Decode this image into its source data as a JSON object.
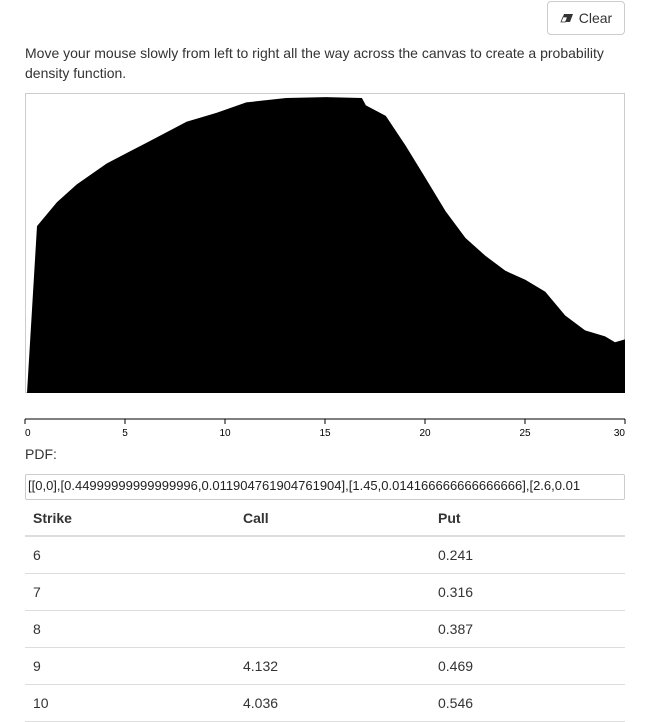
{
  "toolbar": {
    "clear_label": "Clear",
    "clear_icon": "eraser-icon"
  },
  "instructions": "Move your mouse slowly from left to right all the way across the canvas to create a probability density function.",
  "chart_data": {
    "type": "area",
    "xlim": [
      0,
      30
    ],
    "x_ticks": [
      "0",
      "5",
      "10",
      "15",
      "20",
      "25",
      "30"
    ],
    "color": "#000000",
    "x": [
      0,
      0.5,
      1.5,
      2.5,
      4,
      6,
      8,
      9.5,
      11,
      13,
      15,
      16.8,
      17,
      18,
      19,
      20,
      21,
      22,
      23,
      24,
      25,
      25.5,
      26,
      27,
      28,
      29,
      29.5,
      30
    ],
    "y": [
      0,
      0.56,
      0.64,
      0.7,
      0.77,
      0.84,
      0.91,
      0.94,
      0.975,
      0.99,
      0.993,
      0.99,
      0.965,
      0.93,
      0.83,
      0.72,
      0.61,
      0.52,
      0.46,
      0.41,
      0.38,
      0.36,
      0.34,
      0.26,
      0.21,
      0.19,
      0.17,
      0.18
    ]
  },
  "pdf": {
    "label": "PDF:",
    "value": "[[0,0],[0.44999999999999996,0.011904761904761904],[1.45,0.014166666666666666],[2.6,0.01"
  },
  "table": {
    "headers": [
      "Strike",
      "Call",
      "Put"
    ],
    "rows": [
      [
        "6",
        "",
        "0.241"
      ],
      [
        "7",
        "",
        "0.316"
      ],
      [
        "8",
        "",
        "0.387"
      ],
      [
        "9",
        "4.132",
        "0.469"
      ],
      [
        "10",
        "4.036",
        "0.546"
      ]
    ]
  }
}
